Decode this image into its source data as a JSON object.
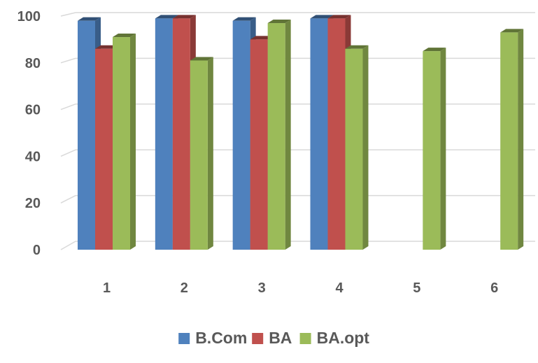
{
  "chart_data": {
    "type": "bar",
    "categories": [
      "1",
      "2",
      "3",
      "4",
      "5",
      "6"
    ],
    "series": [
      {
        "name": "B.Com",
        "color": "#4F81BD",
        "values": [
          98,
          99,
          98,
          99,
          null,
          null
        ]
      },
      {
        "name": "BA",
        "color": "#C0504D",
        "values": [
          86,
          99,
          90,
          99,
          null,
          null
        ]
      },
      {
        "name": "BA.opt",
        "color": "#9BBB59",
        "values": [
          91,
          81,
          97,
          86,
          85,
          93
        ]
      }
    ],
    "yticks": [
      "0",
      "20",
      "40",
      "60",
      "80",
      "100"
    ],
    "ylim": [
      0,
      100
    ],
    "grid": true,
    "legend_position": "bottom"
  }
}
